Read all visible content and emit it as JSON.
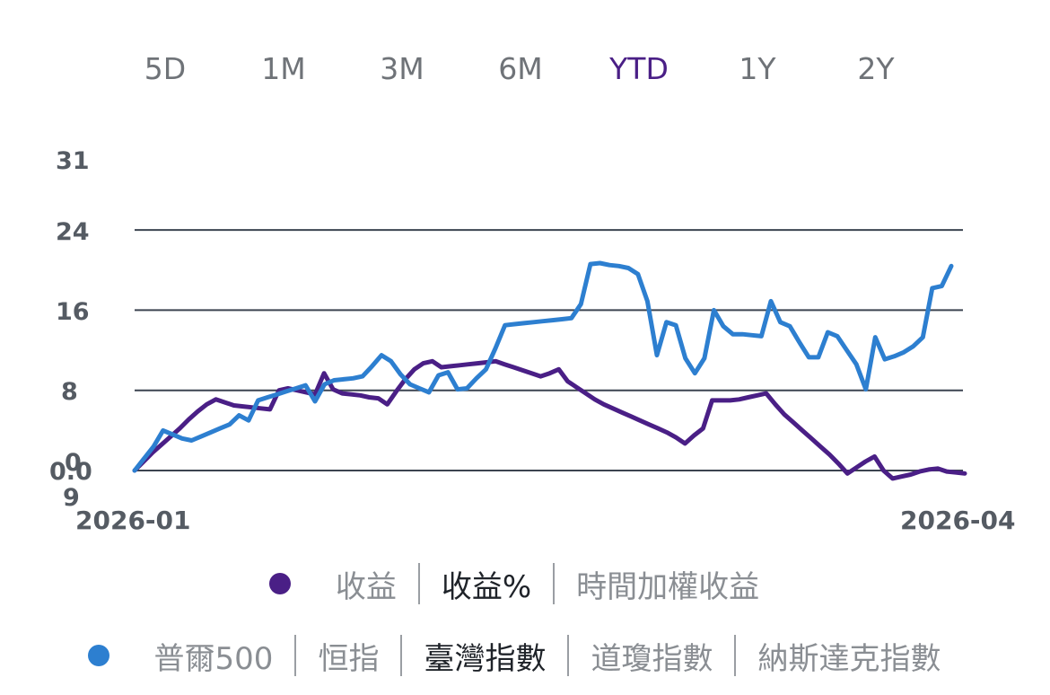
{
  "range_tabs": {
    "items": [
      "5D",
      "1M",
      "3M",
      "6M",
      "YTD",
      "1Y",
      "2Y"
    ],
    "selected": "YTD"
  },
  "colors": {
    "return_series": "#4a1f86",
    "benchmark_series": "#2d7fd0",
    "active_tab": "#4a1f86"
  },
  "metric_toggle": {
    "items": [
      "收益",
      "收益%",
      "時間加權收益"
    ],
    "selected": "收益%"
  },
  "benchmark_toggle": {
    "items": [
      "普爾500",
      "恒指",
      "臺灣指數",
      "道瓊指數",
      "納斯達克指數"
    ],
    "selected": "臺灣指數"
  },
  "chart_data": {
    "type": "line",
    "y_tick_labels": [
      "31",
      "24",
      "16",
      "8",
      "0.0",
      "0",
      "9"
    ],
    "y_gridlines": [
      24,
      16,
      8,
      0
    ],
    "ylim": [
      0,
      31
    ],
    "x_tick_labels": [
      "2026-01",
      "2026-04"
    ],
    "grid": true,
    "series": [
      {
        "color": "#4a1f86",
        "values": [
          0,
          0.9,
          1.8,
          2.6,
          3.4,
          4.2,
          5.1,
          5.9,
          6.6,
          7.1,
          6.8,
          6.5,
          6.4,
          6.3,
          6.2,
          6.1,
          8,
          8.2,
          8,
          7.8,
          7.6,
          9.7,
          8.1,
          7.7,
          7.6,
          7.5,
          7.3,
          7.2,
          6.6,
          7.9,
          9.1,
          10.1,
          10.7,
          10.9,
          10.3,
          10.4,
          10.5,
          10.6,
          10.7,
          10.8,
          10.9,
          10.6,
          10.3,
          10,
          9.7,
          9.4,
          9.7,
          10.1,
          8.9,
          8.3,
          7.7,
          7.1,
          6.6,
          6.2,
          5.8,
          5.4,
          5,
          4.6,
          4.2,
          3.8,
          3.3,
          2.7,
          3.5,
          4.2,
          7,
          7,
          7,
          7.1,
          7.3,
          7.5,
          7.7,
          6.6,
          5.6,
          4.8,
          4,
          3.2,
          2.4,
          1.6,
          0.7,
          -0.3,
          0.3,
          0.9,
          1.4,
          0,
          -0.8,
          -0.6,
          -0.4,
          -0.1,
          0.1,
          0.2,
          -0.1,
          -0.2,
          -0.3
        ]
      },
      {
        "color": "#2d7fd0",
        "values": [
          0,
          1.2,
          2.4,
          4,
          3.6,
          3.2,
          3,
          3.4,
          3.8,
          4.2,
          4.6,
          5.5,
          5,
          7,
          7.3,
          7.6,
          7.9,
          8.2,
          8.5,
          6.9,
          8.6,
          9,
          9.1,
          9.2,
          9.4,
          10.4,
          11.5,
          10.9,
          9.6,
          8.6,
          8.2,
          7.8,
          9.5,
          9.8,
          8.1,
          8.2,
          9.2,
          10.1,
          12.2,
          14.5,
          14.6,
          14.7,
          14.8,
          14.9,
          15,
          15.1,
          15.2,
          16.6,
          20.6,
          20.7,
          20.5,
          20.4,
          20.2,
          19.6,
          16.9,
          11.5,
          14.8,
          14.5,
          11.2,
          9.7,
          11.2,
          16,
          14.4,
          13.6,
          13.6,
          13.5,
          13.4,
          16.9,
          14.8,
          14.4,
          12.8,
          11.3,
          11.3,
          13.8,
          13.4,
          12,
          10.6,
          8.1,
          13.3,
          11.1,
          11.4,
          11.8,
          12.4,
          13.3,
          18.2,
          18.4,
          20.4
        ]
      }
    ]
  }
}
